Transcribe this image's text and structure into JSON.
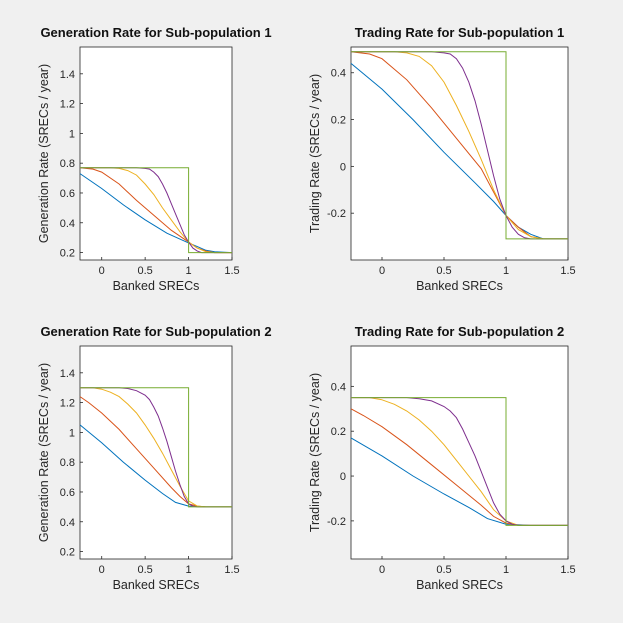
{
  "chart_data": [
    {
      "type": "line",
      "title": "Generation Rate for Sub-population 1",
      "xlabel": "Banked SRECs",
      "ylabel": "Generation Rate (SRECs / year)",
      "xlim": [
        -0.25,
        1.5
      ],
      "ylim": [
        0.15,
        1.58
      ],
      "xticks": [
        0,
        0.5,
        1,
        1.5
      ],
      "xtick_labels": [
        "0",
        "0.5",
        "1",
        "1.5"
      ],
      "yticks": [
        0.2,
        0.4,
        0.6,
        0.8,
        1,
        1.2,
        1.4
      ],
      "ytick_labels": [
        "0.2",
        "0.4",
        "0.6",
        "0.8",
        "1",
        "1.2",
        "1.4"
      ],
      "grid": false,
      "series": [
        {
          "name": "blue",
          "color": "#0072BD",
          "x": [
            -0.25,
            0,
            0.25,
            0.5,
            0.75,
            0.9,
            1.0,
            1.1,
            1.2,
            1.3,
            1.5
          ],
          "y": [
            0.73,
            0.63,
            0.52,
            0.42,
            0.33,
            0.29,
            0.265,
            0.24,
            0.215,
            0.205,
            0.2
          ]
        },
        {
          "name": "red",
          "color": "#D95319",
          "x": [
            -0.25,
            -0.1,
            0,
            0.2,
            0.4,
            0.6,
            0.8,
            1.0,
            1.1,
            1.2,
            1.3,
            1.5
          ],
          "y": [
            0.77,
            0.76,
            0.74,
            0.66,
            0.55,
            0.45,
            0.35,
            0.27,
            0.23,
            0.21,
            0.2,
            0.2
          ]
        },
        {
          "name": "yellow",
          "color": "#EDB120",
          "x": [
            -0.25,
            0.1,
            0.2,
            0.3,
            0.4,
            0.5,
            0.6,
            0.7,
            0.8,
            0.9,
            1.0,
            1.1,
            1.2,
            1.3,
            1.5
          ],
          "y": [
            0.77,
            0.77,
            0.765,
            0.75,
            0.72,
            0.66,
            0.59,
            0.5,
            0.42,
            0.34,
            0.27,
            0.23,
            0.205,
            0.2,
            0.2
          ]
        },
        {
          "name": "purple",
          "color": "#7E2F8E",
          "x": [
            -0.25,
            0.4,
            0.5,
            0.55,
            0.6,
            0.65,
            0.7,
            0.75,
            0.8,
            0.85,
            0.9,
            0.95,
            1.0,
            1.05,
            1.1,
            1.15,
            1.2,
            1.3,
            1.5
          ],
          "y": [
            0.77,
            0.77,
            0.765,
            0.76,
            0.74,
            0.71,
            0.66,
            0.6,
            0.53,
            0.46,
            0.39,
            0.32,
            0.27,
            0.23,
            0.21,
            0.2,
            0.2,
            0.2,
            0.2
          ]
        },
        {
          "name": "green",
          "color": "#77AC30",
          "x": [
            -0.25,
            1.0,
            1.0,
            1.5
          ],
          "y": [
            0.77,
            0.77,
            0.2,
            0.2
          ]
        }
      ]
    },
    {
      "type": "line",
      "title": "Trading Rate for Sub-population 1",
      "xlabel": "Banked SRECs",
      "ylabel": "Trading Rate (SRECs / year)",
      "xlim": [
        -0.25,
        1.5
      ],
      "ylim": [
        -0.4,
        0.51
      ],
      "xticks": [
        0,
        0.5,
        1,
        1.5
      ],
      "xtick_labels": [
        "0",
        "0.5",
        "1",
        "1.5"
      ],
      "yticks": [
        -0.2,
        0,
        0.2,
        0.4
      ],
      "ytick_labels": [
        "-0.2",
        "0",
        "0.2",
        "0.4"
      ],
      "grid": false,
      "series": [
        {
          "name": "blue",
          "color": "#0072BD",
          "x": [
            -0.25,
            0,
            0.25,
            0.5,
            0.75,
            0.9,
            1.0,
            1.1,
            1.2,
            1.3,
            1.5
          ],
          "y": [
            0.44,
            0.33,
            0.2,
            0.06,
            -0.07,
            -0.15,
            -0.21,
            -0.26,
            -0.29,
            -0.31,
            -0.31
          ]
        },
        {
          "name": "red",
          "color": "#D95319",
          "x": [
            -0.25,
            -0.1,
            0,
            0.2,
            0.4,
            0.6,
            0.8,
            1.0,
            1.1,
            1.2,
            1.3,
            1.5
          ],
          "y": [
            0.49,
            0.48,
            0.46,
            0.37,
            0.25,
            0.12,
            -0.01,
            -0.21,
            -0.26,
            -0.3,
            -0.31,
            -0.31
          ]
        },
        {
          "name": "yellow",
          "color": "#EDB120",
          "x": [
            -0.25,
            0.1,
            0.2,
            0.3,
            0.4,
            0.5,
            0.6,
            0.7,
            0.8,
            0.9,
            1.0,
            1.1,
            1.2,
            1.3,
            1.5
          ],
          "y": [
            0.49,
            0.49,
            0.485,
            0.47,
            0.43,
            0.36,
            0.26,
            0.15,
            0.03,
            -0.1,
            -0.21,
            -0.27,
            -0.3,
            -0.31,
            -0.31
          ]
        },
        {
          "name": "purple",
          "color": "#7E2F8E",
          "x": [
            -0.25,
            0.4,
            0.5,
            0.55,
            0.6,
            0.65,
            0.7,
            0.75,
            0.8,
            0.85,
            0.9,
            0.95,
            1.0,
            1.05,
            1.1,
            1.15,
            1.2,
            1.3,
            1.5
          ],
          "y": [
            0.49,
            0.49,
            0.485,
            0.48,
            0.46,
            0.42,
            0.36,
            0.28,
            0.18,
            0.07,
            -0.04,
            -0.14,
            -0.21,
            -0.26,
            -0.29,
            -0.305,
            -0.31,
            -0.31,
            -0.31
          ]
        },
        {
          "name": "green",
          "color": "#77AC30",
          "x": [
            -0.25,
            1.0,
            1.0,
            1.5
          ],
          "y": [
            0.49,
            0.49,
            -0.31,
            -0.31
          ]
        }
      ]
    },
    {
      "type": "line",
      "title": "Generation Rate for Sub-population 2",
      "xlabel": "Banked SRECs",
      "ylabel": "Generation Rate (SRECs / year)",
      "xlim": [
        -0.25,
        1.5
      ],
      "ylim": [
        0.15,
        1.58
      ],
      "xticks": [
        0,
        0.5,
        1,
        1.5
      ],
      "xtick_labels": [
        "0",
        "0.5",
        "1",
        "1.5"
      ],
      "yticks": [
        0.2,
        0.4,
        0.6,
        0.8,
        1,
        1.2,
        1.4
      ],
      "ytick_labels": [
        "0.2",
        "0.4",
        "0.6",
        "0.8",
        "1",
        "1.2",
        "1.4"
      ],
      "grid": false,
      "series": [
        {
          "name": "blue",
          "color": "#0072BD",
          "x": [
            -0.25,
            0,
            0.25,
            0.5,
            0.7,
            0.85,
            1.0,
            1.2,
            1.5
          ],
          "y": [
            1.05,
            0.93,
            0.8,
            0.68,
            0.59,
            0.53,
            0.505,
            0.5,
            0.5
          ]
        },
        {
          "name": "red",
          "color": "#D95319",
          "x": [
            -0.25,
            -0.15,
            0,
            0.2,
            0.4,
            0.6,
            0.8,
            0.9,
            1.0,
            1.1,
            1.2,
            1.5
          ],
          "y": [
            1.24,
            1.2,
            1.13,
            1.02,
            0.89,
            0.76,
            0.63,
            0.57,
            0.52,
            0.505,
            0.5,
            0.5
          ]
        },
        {
          "name": "yellow",
          "color": "#EDB120",
          "x": [
            -0.25,
            -0.1,
            0,
            0.1,
            0.2,
            0.3,
            0.4,
            0.5,
            0.6,
            0.7,
            0.8,
            0.9,
            1.0,
            1.1,
            1.2,
            1.5
          ],
          "y": [
            1.3,
            1.3,
            1.29,
            1.27,
            1.24,
            1.19,
            1.13,
            1.05,
            0.96,
            0.86,
            0.75,
            0.64,
            0.54,
            0.505,
            0.5,
            0.5
          ]
        },
        {
          "name": "purple",
          "color": "#7E2F8E",
          "x": [
            -0.25,
            0.2,
            0.3,
            0.4,
            0.5,
            0.55,
            0.6,
            0.65,
            0.7,
            0.75,
            0.8,
            0.85,
            0.9,
            0.95,
            1.0,
            1.05,
            1.1,
            1.2,
            1.5
          ],
          "y": [
            1.3,
            1.3,
            1.295,
            1.28,
            1.25,
            1.22,
            1.17,
            1.11,
            1.03,
            0.94,
            0.84,
            0.74,
            0.65,
            0.57,
            0.52,
            0.505,
            0.5,
            0.5,
            0.5
          ]
        },
        {
          "name": "green",
          "color": "#77AC30",
          "x": [
            -0.25,
            1.0,
            1.0,
            1.5
          ],
          "y": [
            1.3,
            1.3,
            0.5,
            0.5
          ]
        }
      ]
    },
    {
      "type": "line",
      "title": "Trading Rate for Sub-population 2",
      "xlabel": "Banked SRECs",
      "ylabel": "Trading Rate (SRECs / year)",
      "xlim": [
        -0.25,
        1.5
      ],
      "ylim": [
        -0.37,
        0.58
      ],
      "xticks": [
        0,
        0.5,
        1,
        1.5
      ],
      "xtick_labels": [
        "0",
        "0.5",
        "1",
        "1.5"
      ],
      "yticks": [
        -0.2,
        0,
        0.2,
        0.4
      ],
      "ytick_labels": [
        "-0.2",
        "0",
        "0.2",
        "0.4"
      ],
      "grid": false,
      "series": [
        {
          "name": "blue",
          "color": "#0072BD",
          "x": [
            -0.25,
            0,
            0.25,
            0.5,
            0.7,
            0.85,
            1.0,
            1.2,
            1.5
          ],
          "y": [
            0.17,
            0.09,
            0.0,
            -0.08,
            -0.14,
            -0.19,
            -0.215,
            -0.22,
            -0.22
          ]
        },
        {
          "name": "red",
          "color": "#D95319",
          "x": [
            -0.25,
            -0.15,
            0,
            0.2,
            0.4,
            0.6,
            0.8,
            0.9,
            1.0,
            1.1,
            1.2,
            1.5
          ],
          "y": [
            0.3,
            0.27,
            0.22,
            0.14,
            0.05,
            -0.04,
            -0.13,
            -0.18,
            -0.21,
            -0.22,
            -0.22,
            -0.22
          ]
        },
        {
          "name": "yellow",
          "color": "#EDB120",
          "x": [
            -0.25,
            -0.1,
            0,
            0.1,
            0.2,
            0.3,
            0.4,
            0.5,
            0.6,
            0.7,
            0.8,
            0.9,
            1.0,
            1.1,
            1.2,
            1.5
          ],
          "y": [
            0.35,
            0.35,
            0.34,
            0.32,
            0.29,
            0.25,
            0.2,
            0.14,
            0.07,
            0.0,
            -0.07,
            -0.15,
            -0.2,
            -0.22,
            -0.22,
            -0.22
          ]
        },
        {
          "name": "purple",
          "color": "#7E2F8E",
          "x": [
            -0.25,
            0.2,
            0.3,
            0.4,
            0.5,
            0.55,
            0.6,
            0.65,
            0.7,
            0.75,
            0.8,
            0.85,
            0.9,
            0.95,
            1.0,
            1.05,
            1.1,
            1.2,
            1.5
          ],
          "y": [
            0.35,
            0.35,
            0.345,
            0.335,
            0.31,
            0.29,
            0.26,
            0.21,
            0.15,
            0.09,
            0.02,
            -0.05,
            -0.12,
            -0.17,
            -0.2,
            -0.215,
            -0.22,
            -0.22,
            -0.22
          ]
        },
        {
          "name": "green",
          "color": "#77AC30",
          "x": [
            -0.25,
            1.0,
            1.0,
            1.5
          ],
          "y": [
            0.35,
            0.35,
            -0.22,
            -0.22
          ]
        }
      ]
    }
  ]
}
